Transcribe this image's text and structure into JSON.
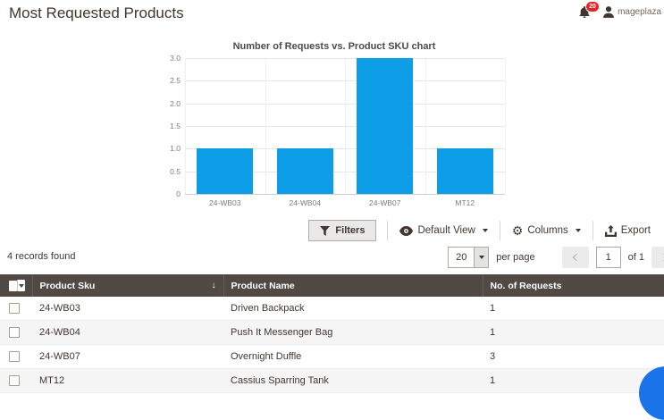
{
  "header": {
    "title": "Most Requested Products",
    "notification_count": "20",
    "username": "mageplaza"
  },
  "chart_data": {
    "type": "bar",
    "title": "Number of Requests vs. Product SKU chart",
    "categories": [
      "24-WB03",
      "24-WB04",
      "24-WB07",
      "MT12"
    ],
    "values": [
      1,
      1,
      3,
      1
    ],
    "ylim": [
      0,
      3
    ],
    "ytick_labels": [
      "3.0",
      "2.5",
      "2.0",
      "1.5",
      "1.0",
      "0.5",
      "0"
    ],
    "grid": true,
    "legend": false,
    "bar_color": "#0d9ee7",
    "xlabel": "",
    "ylabel": ""
  },
  "toolbar": {
    "filters": "Filters",
    "view": "Default View",
    "columns": "Columns",
    "export": "Export"
  },
  "grid_controls": {
    "records_found": "4 records found",
    "per_page_value": "20",
    "per_page_label": "per page",
    "page_value": "1",
    "page_total": "of 1"
  },
  "table": {
    "headers": {
      "sku": "Product Sku",
      "name": "Product Name",
      "requests": "No. of Requests"
    },
    "rows": [
      {
        "sku": "24-WB03",
        "name": "Driven Backpack",
        "requests": "1"
      },
      {
        "sku": "24-WB04",
        "name": "Push It Messenger Bag",
        "requests": "1"
      },
      {
        "sku": "24-WB07",
        "name": "Overnight Duffle",
        "requests": "3"
      },
      {
        "sku": "MT12",
        "name": "Cassius Sparring Tank",
        "requests": "1"
      }
    ]
  },
  "icons": {
    "gear": "⚙",
    "sort_desc": "↓"
  },
  "colors": {
    "bar_color": "#0d9ee7",
    "table_header_bg": "#514943",
    "notification_badge": "#e22626",
    "chat_button": "#1a73e8"
  }
}
